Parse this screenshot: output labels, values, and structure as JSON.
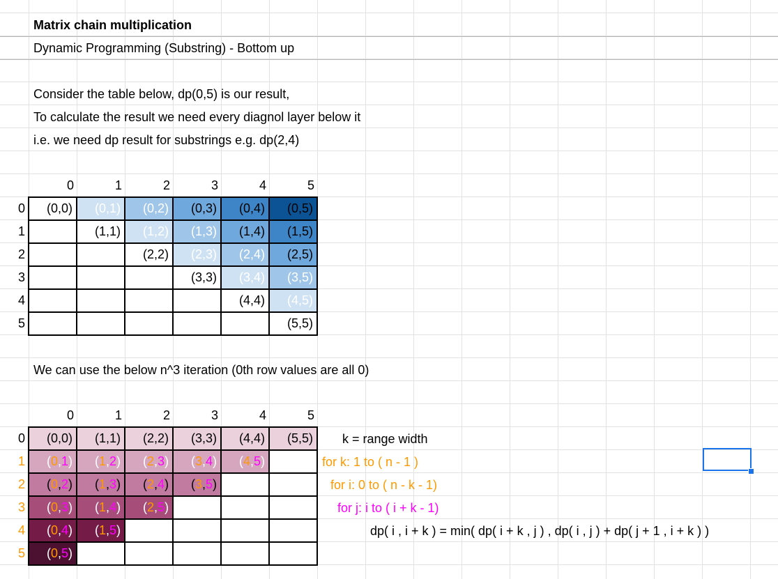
{
  "heading": {
    "title": "Matrix chain multiplication",
    "subtitle": "Dynamic Programming (Substring) - Bottom up"
  },
  "description": [
    "Consider the table below, dp(0,5) is our result,",
    "To calculate the result we need every diagnol layer below it",
    "i.e. we need dp result for substrings e.g. dp(2,4)"
  ],
  "table1": {
    "col_headers": [
      "0",
      "1",
      "2",
      "3",
      "4",
      "5"
    ],
    "row_headers": [
      "0",
      "1",
      "2",
      "3",
      "4",
      "5"
    ],
    "rows": [
      [
        "(0,0)",
        "(0,1)",
        "(0,2)",
        "(0,3)",
        "(0,4)",
        "(0,5)"
      ],
      [
        "",
        "(1,1)",
        "(1,2)",
        "(1,3)",
        "(1,4)",
        "(1,5)"
      ],
      [
        "",
        "",
        "(2,2)",
        "(2,3)",
        "(2,4)",
        "(2,5)"
      ],
      [
        "",
        "",
        "",
        "(3,3)",
        "(3,4)",
        "(3,5)"
      ],
      [
        "",
        "",
        "",
        "",
        "(4,4)",
        "(4,5)"
      ],
      [
        "",
        "",
        "",
        "",
        "",
        "(5,5)"
      ]
    ],
    "diagonal_colors": [
      "#ffffff",
      "#cfe2f3",
      "#9fc5e8",
      "#6fa8dc",
      "#3d85c6",
      "#0b5394"
    ]
  },
  "note": "We can use the below n^3 iteration (0th row values are all 0)",
  "table2": {
    "col_headers": [
      "0",
      "1",
      "2",
      "3",
      "4",
      "5"
    ],
    "row_headers": [
      "0",
      "1",
      "2",
      "3",
      "4",
      "5"
    ],
    "rows": [
      [
        "(0,0)",
        "(1,1)",
        "(2,2)",
        "(3,3)",
        "(4,4)",
        "(5,5)"
      ],
      [
        "(0,1)",
        "(1,2)",
        "(2,3)",
        "(3,4)",
        "(4,5)",
        ""
      ],
      [
        "(0,2)",
        "(1,3)",
        "(2,4)",
        "(3,5)",
        "",
        ""
      ],
      [
        "(0,3)",
        "(1,4)",
        "(2,5)",
        "",
        "",
        ""
      ],
      [
        "(0,4)",
        "(1,5)",
        "",
        "",
        "",
        ""
      ],
      [
        "(0,5)",
        "",
        "",
        "",
        "",
        ""
      ]
    ],
    "row_colors": [
      "#ead1dc",
      "#d5a6bd",
      "#c27ba0",
      "#a64d79",
      "#741b47",
      "#4c1130"
    ],
    "row_header_color": "#ff9900"
  },
  "pseudocode": {
    "k_def": "k = range width",
    "loop_k": "for  k:  1 to ( n - 1 )",
    "loop_i": "for  i:  0 to ( n - k - 1)",
    "loop_j": "for  j:  i to ( i + k - 1)",
    "formula": "dp( i , i + k ) = min( dp( i + k , j ) , dp( i , j ) + dp( j + 1 , i + k ) )",
    "loop_k_color": "#ff9900",
    "loop_i_color": "#ff9900",
    "loop_j_color": "#ff00ff"
  },
  "colors": {
    "selection": "#1a73e8",
    "grid": "#e2e2e2",
    "index_i": "#ff9900",
    "index_j": "#ff00ff"
  }
}
